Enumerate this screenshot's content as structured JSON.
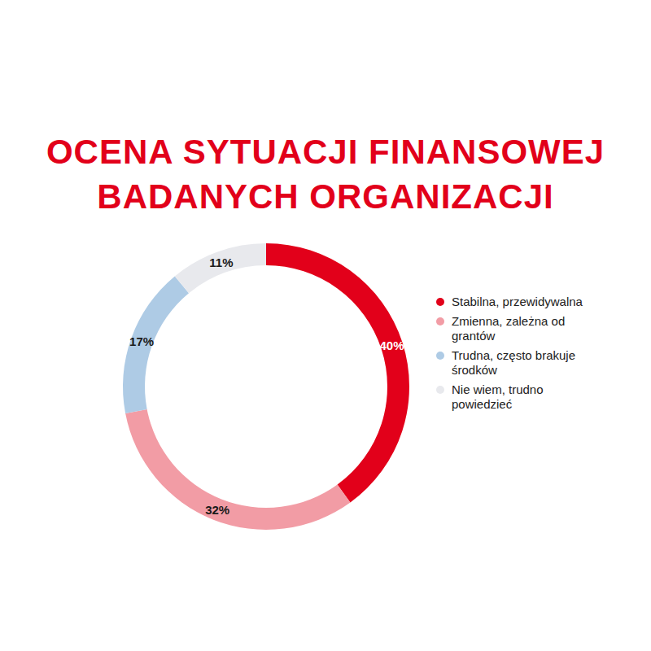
{
  "chart_data": {
    "type": "pie",
    "title": "OCENA SYTUACJI FINANSOWEJ\nBADANYCH ORGANIZACJI",
    "categories": [
      "Stabilna, przewidywalna",
      "Zmienna, zależna od grantów",
      "Trudna, często brakuje środków",
      "Nie wiem, trudno powiedzieć"
    ],
    "values": [
      40,
      32,
      17,
      11
    ],
    "value_labels": [
      "40%",
      "32%",
      "17%",
      "11%"
    ],
    "colors": [
      "#e2001a",
      "#f29ca5",
      "#aecbe5",
      "#e8e9ed"
    ],
    "data_labels": true,
    "legend": "right"
  }
}
